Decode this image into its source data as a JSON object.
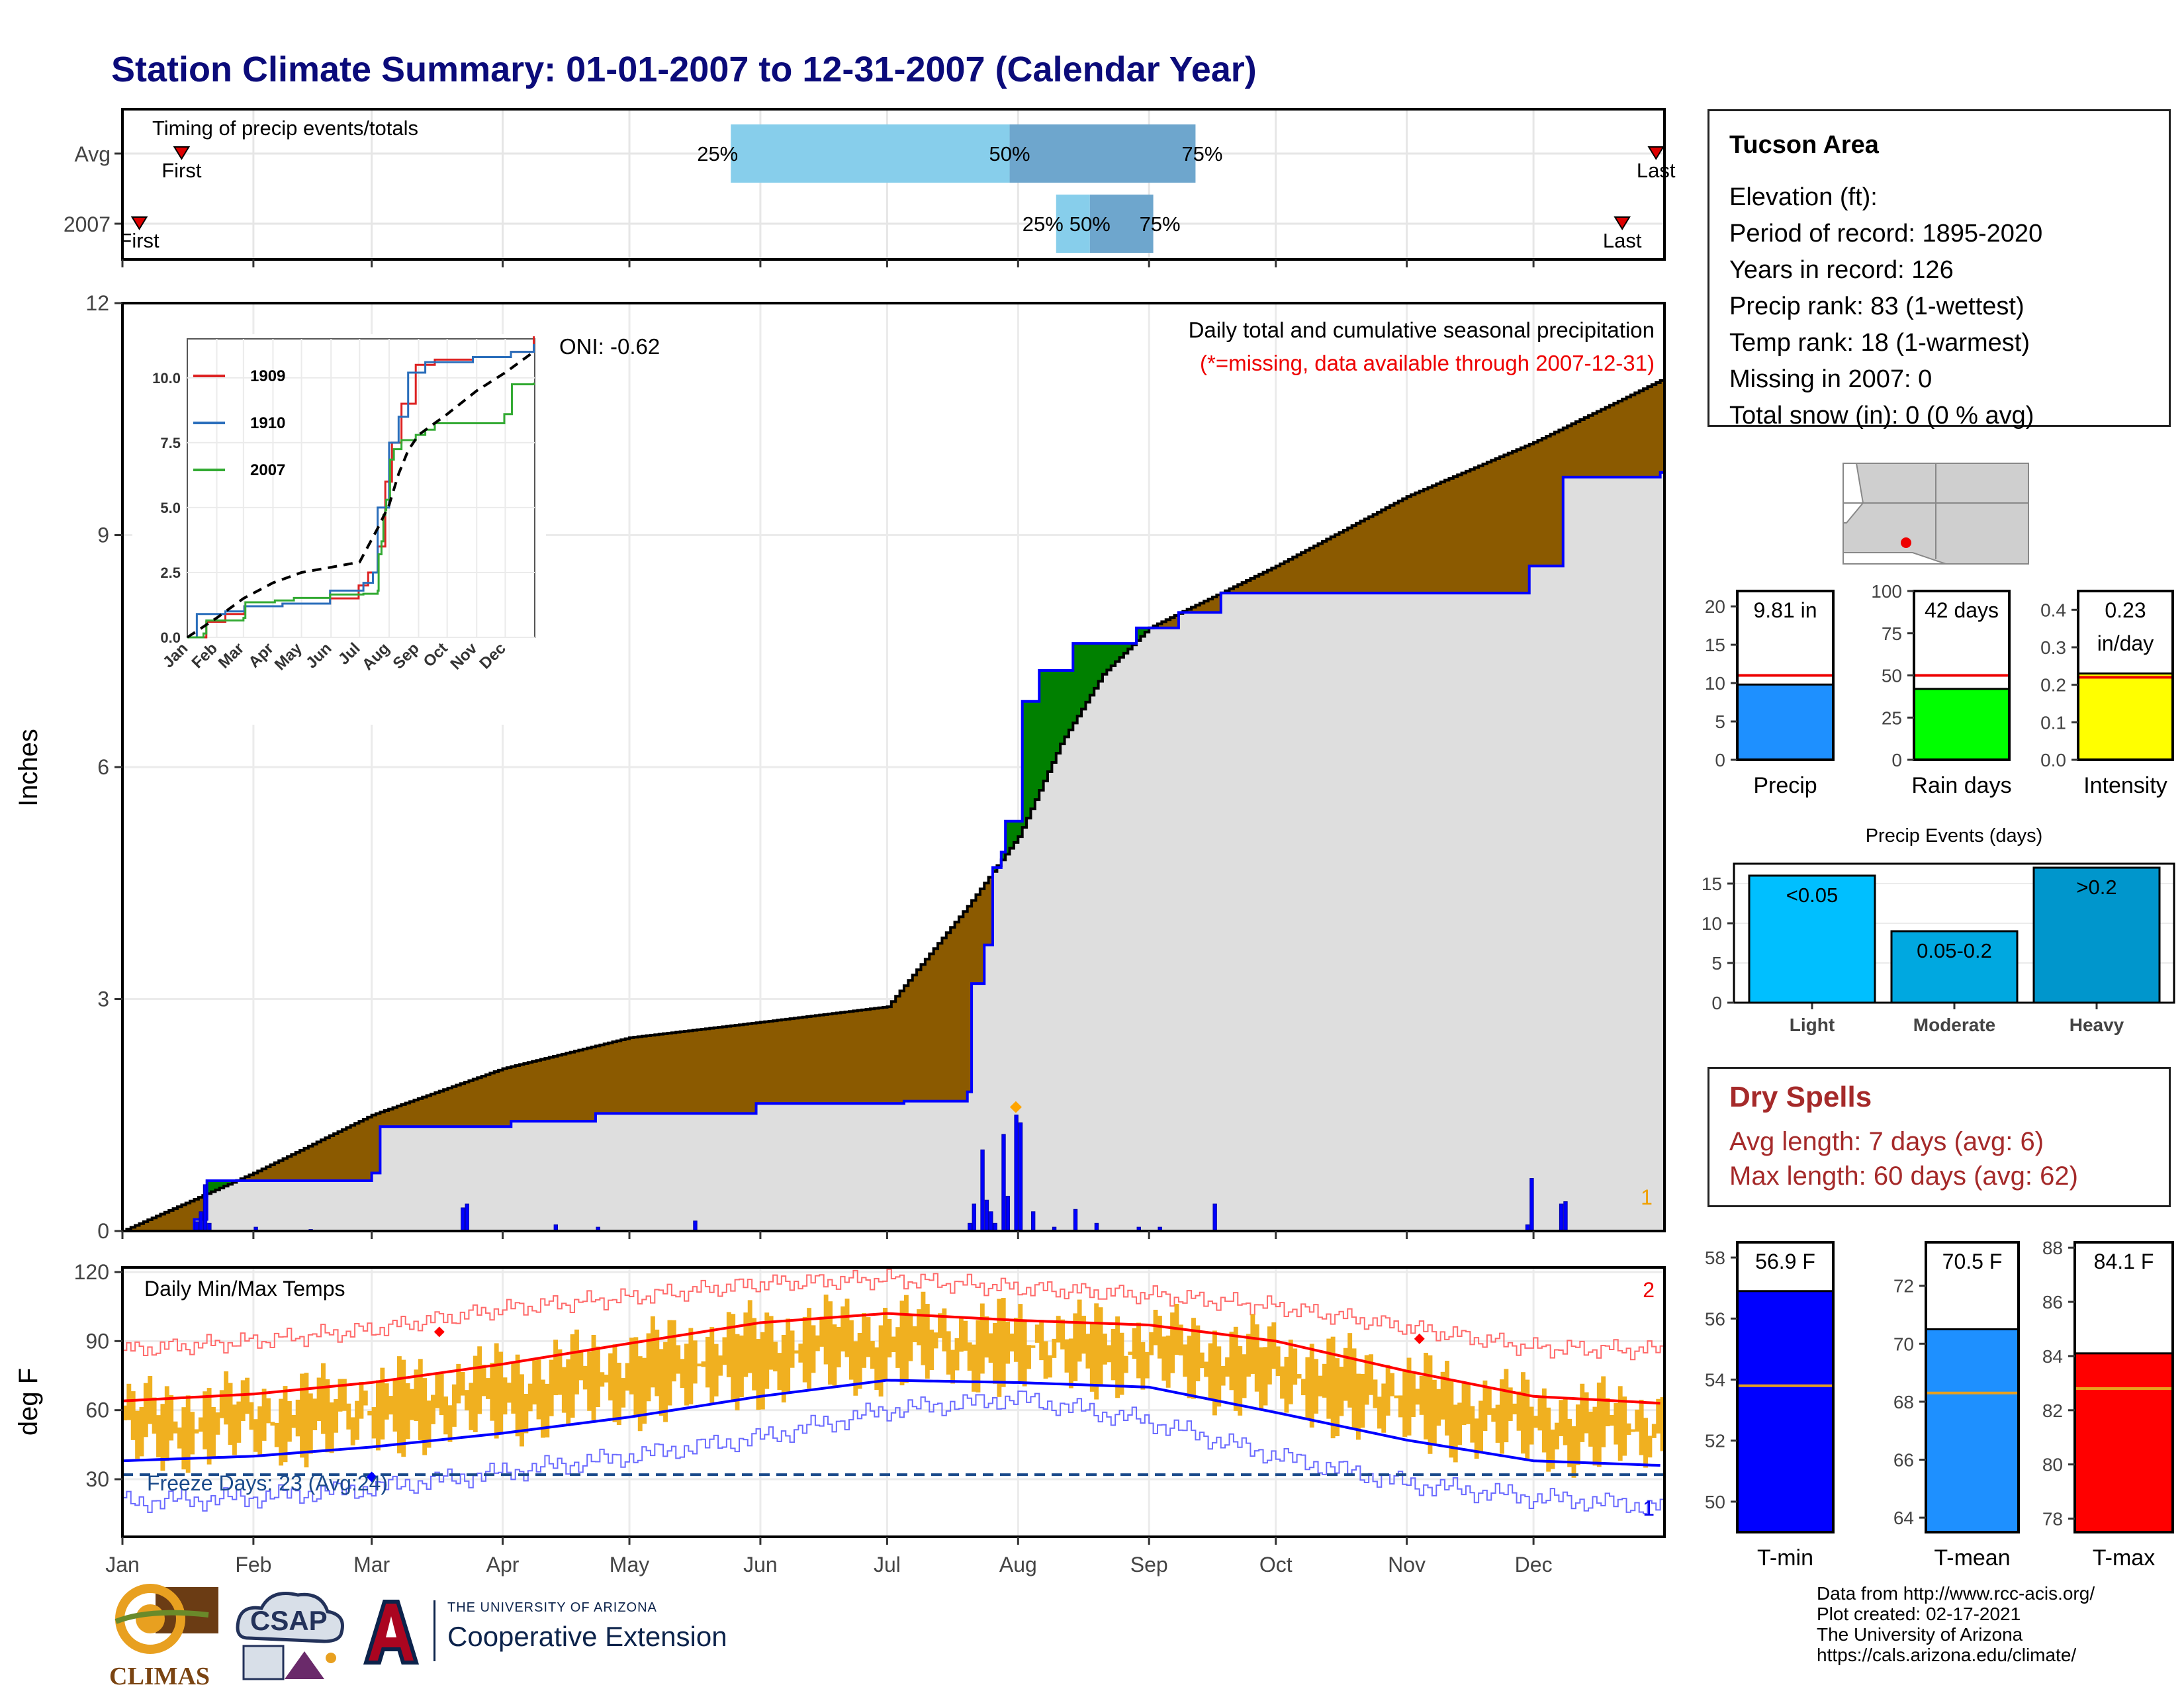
{
  "title": "Station Climate Summary: 01-01-2007 to 12-31-2007 (Calendar Year)",
  "colors": {
    "title": "#0b0b7a",
    "precip_avg_fill": "#8b5a00",
    "precip_surplus_fill": "#008000",
    "precip_line": "#0000ff",
    "temp_bars": "#f0b020",
    "avg_max": "#ff0000",
    "avg_min": "#0000ff"
  },
  "timing_panel": {
    "title": "Timing of precip events/totals",
    "rows": [
      {
        "label": "Avg",
        "first_label": "First",
        "last_label": "Last",
        "q25": "25%",
        "q50": "50%",
        "q75": "75%"
      },
      {
        "label": "2007",
        "first_label": "First",
        "last_label": "Last",
        "q25": "25%",
        "q50": "50%",
        "q75": "75%"
      }
    ]
  },
  "precip_panel": {
    "ylabel": "Inches",
    "title": "Daily total and cumulative seasonal precipitation",
    "subtitle": "(*=missing, data available through 2007-12-31)",
    "oni": "ONI: -0.62",
    "count_label": "1"
  },
  "temp_panel": {
    "ylabel": "deg F",
    "title": "Daily Min/Max Temps",
    "freeze_text": "Freeze Days: 23 (Avg:24)",
    "count_top": "2",
    "count_bottom": "1"
  },
  "station_info": {
    "name": "Tucson Area",
    "lines": [
      "Elevation (ft):",
      "Period of record: 1895-2020",
      "Years in record: 126",
      "Precip rank: 83 (1-wettest)",
      "Temp rank: 18 (1-warmest)",
      "Missing in 2007: 0",
      "Total snow (in): 0 (0 % avg)"
    ]
  },
  "dry_spells": {
    "title": "Dry Spells",
    "avg_line": "Avg length: 7 days (avg: 6)",
    "max_line": "Max length: 60 days (avg: 62)"
  },
  "events_panel": {
    "title": "Precip Events (days)"
  },
  "credits": [
    "Data from http://www.rcc-acis.org/",
    "Plot created: 02-17-2021",
    "The University of Arizona",
    "https://cals.arizona.edu/climate/"
  ],
  "logos": {
    "climas": "CLIMAS",
    "csap": "CSAP",
    "ua_small": "THE UNIVERSITY OF ARIZONA",
    "coop": "Cooperative Extension"
  },
  "chart_data": [
    {
      "type": "bar",
      "name": "timing",
      "categories": [
        "Avg",
        "2007"
      ],
      "x_axis": "day of year",
      "first": [
        14,
        4
      ],
      "q25": [
        144,
        221
      ],
      "q50": [
        210,
        229
      ],
      "q75": [
        254,
        244
      ],
      "last": [
        363,
        355
      ]
    },
    {
      "type": "area",
      "name": "cumulative precipitation",
      "x_labels": [
        "Jan",
        "Feb",
        "Mar",
        "Apr",
        "May",
        "Jun",
        "Jul",
        "Aug",
        "Sep",
        "Oct",
        "Nov",
        "Dec"
      ],
      "ylim": [
        0,
        12
      ],
      "yticks": [
        0,
        3,
        6,
        9,
        12
      ],
      "avg_cumulative": {
        "day": [
          0,
          31,
          59,
          90,
          120,
          151,
          181,
          200,
          212,
          222,
          232,
          243,
          258,
          273,
          304,
          334,
          364
        ],
        "inches": [
          0,
          0.75,
          1.5,
          2.1,
          2.5,
          2.7,
          2.9,
          4.2,
          5.1,
          6.3,
          7.2,
          7.8,
          8.2,
          8.6,
          9.5,
          10.2,
          11.0
        ]
      },
      "cumulative_2007": {
        "day": [
          0,
          17,
          20,
          59,
          61,
          92,
          112,
          150,
          185,
          200,
          201,
          204,
          206,
          208,
          209,
          213,
          217,
          225,
          240,
          250,
          260,
          275,
          294,
          332,
          333,
          340,
          341,
          364
        ],
        "inches": [
          0,
          0.15,
          0.65,
          0.75,
          1.35,
          1.42,
          1.52,
          1.65,
          1.68,
          1.8,
          3.2,
          3.7,
          4.7,
          4.9,
          5.3,
          6.85,
          7.25,
          7.6,
          7.8,
          8.0,
          8.25,
          8.25,
          8.25,
          8.25,
          8.6,
          8.6,
          9.75,
          9.81
        ]
      },
      "daily_2007": {
        "day": [
          17,
          18,
          19,
          20,
          31,
          44,
          80,
          81,
          102,
          112,
          135,
          200,
          201,
          203,
          204,
          205,
          206,
          208,
          209,
          211,
          212,
          215,
          220,
          225,
          230,
          240,
          245,
          258,
          332,
          333,
          340,
          341
        ],
        "inches": [
          0.12,
          0.25,
          0.6,
          0.1,
          0.05,
          0.02,
          0.3,
          0.35,
          0.08,
          0.05,
          0.13,
          0.1,
          0.35,
          1.05,
          0.4,
          0.25,
          0.1,
          1.25,
          0.45,
          1.5,
          1.4,
          0.25,
          0.05,
          0.28,
          0.1,
          0.05,
          0.05,
          0.35,
          0.08,
          0.68,
          0.35,
          0.38
        ]
      },
      "inset": {
        "type": "line",
        "ylim": [
          0,
          11.5
        ],
        "yticks": [
          0.0,
          2.5,
          5.0,
          7.5,
          10.0
        ],
        "x_labels": [
          "Jan",
          "Feb",
          "Mar",
          "Apr",
          "May",
          "Jun",
          "Jul",
          "Aug",
          "Sep",
          "Oct",
          "Nov",
          "Dec"
        ],
        "series": [
          {
            "name": "1909",
            "color": "#dd2222",
            "day": [
              0,
              20,
              40,
              60,
              100,
              150,
              180,
              190,
              200,
              208,
              215,
              225,
              240,
              260,
              300,
              340,
              364
            ],
            "inches": [
              0,
              0.6,
              0.9,
              1.2,
              1.3,
              1.5,
              2.0,
              2.5,
              3.5,
              6.0,
              7.5,
              9.0,
              10.5,
              10.7,
              10.8,
              11.0,
              11.6
            ]
          },
          {
            "name": "1910",
            "color": "#2a6ebb",
            "day": [
              0,
              10,
              40,
              60,
              100,
              150,
              185,
              195,
              200,
              212,
              222,
              232,
              250,
              270,
              300,
              340,
              364
            ],
            "inches": [
              0,
              0.9,
              1.0,
              1.2,
              1.3,
              1.8,
              2.1,
              2.5,
              5.0,
              7.5,
              8.5,
              10.2,
              10.6,
              10.6,
              10.8,
              11.0,
              11.3
            ]
          },
          {
            "name": "2007",
            "color": "#33aa33",
            "day": [
              0,
              17,
              20,
              59,
              61,
              92,
              112,
              150,
              185,
              200,
              201,
              204,
              206,
              208,
              209,
              213,
              217,
              225,
              240,
              250,
              260,
              275,
              294,
              332,
              333,
              340,
              341,
              364
            ],
            "inches": [
              0,
              0.15,
              0.65,
              0.75,
              1.35,
              1.42,
              1.52,
              1.65,
              1.68,
              1.8,
              3.2,
              3.7,
              4.7,
              4.9,
              5.3,
              6.85,
              7.25,
              7.6,
              7.8,
              8.0,
              8.25,
              8.25,
              8.25,
              8.25,
              8.6,
              8.6,
              9.75,
              9.81
            ]
          }
        ],
        "avg": {
          "day": [
            0,
            31,
            59,
            90,
            120,
            151,
            181,
            200,
            212,
            222,
            232,
            243,
            258,
            273,
            304,
            334,
            364
          ],
          "inches": [
            0,
            0.75,
            1.5,
            2.1,
            2.5,
            2.7,
            2.9,
            4.2,
            5.1,
            6.3,
            7.2,
            7.8,
            8.2,
            8.6,
            9.5,
            10.2,
            11.0
          ]
        }
      }
    },
    {
      "type": "bar",
      "name": "daily min/max temps",
      "ylim": [
        5,
        122
      ],
      "yticks": [
        30,
        60,
        90,
        120
      ],
      "x_labels": [
        "Jan",
        "Feb",
        "Mar",
        "Apr",
        "May",
        "Jun",
        "Jul",
        "Aug",
        "Sep",
        "Oct",
        "Nov",
        "Dec"
      ],
      "freeze_line": 32,
      "avg_max": {
        "day": [
          0,
          31,
          59,
          90,
          120,
          151,
          181,
          212,
          243,
          273,
          304,
          334,
          364
        ],
        "degF": [
          64,
          67,
          72,
          80,
          89,
          98,
          102,
          99,
          97,
          90,
          77,
          66,
          63
        ]
      },
      "avg_min": {
        "day": [
          0,
          31,
          59,
          90,
          120,
          151,
          181,
          212,
          243,
          273,
          304,
          334,
          364
        ],
        "degF": [
          38,
          40,
          44,
          50,
          57,
          66,
          73,
          72,
          70,
          59,
          47,
          38,
          36
        ]
      },
      "record_max": {
        "day": [
          0,
          31,
          59,
          90,
          120,
          151,
          181,
          212,
          243,
          273,
          304,
          334,
          364
        ],
        "degF": [
          86,
          90,
          95,
          104,
          109,
          115,
          117,
          113,
          110,
          105,
          96,
          87,
          86
        ]
      },
      "record_min": {
        "day": [
          0,
          31,
          59,
          90,
          120,
          151,
          181,
          212,
          243,
          273,
          304,
          334,
          364
        ],
        "degF": [
          20,
          22,
          26,
          33,
          40,
          48,
          60,
          65,
          55,
          40,
          28,
          22,
          18
        ]
      }
    },
    {
      "type": "bar",
      "name": "season totals",
      "panels": [
        {
          "label": "Precip",
          "value_text": "9.81 in",
          "value": 9.81,
          "avg": 11.0,
          "ylim": [
            0,
            22
          ],
          "yticks": [
            0,
            5,
            10,
            15,
            20
          ],
          "color": "#1e90ff"
        },
        {
          "label": "Rain days",
          "value_text": "42 days",
          "value": 42,
          "avg": 50,
          "ylim": [
            0,
            100
          ],
          "yticks": [
            0,
            25,
            50,
            75,
            100
          ],
          "color": "#00ff00"
        },
        {
          "label": "Intensity",
          "value_text": "0.23 in/day",
          "value": 0.23,
          "avg": 0.22,
          "ylim": [
            0,
            0.45
          ],
          "yticks": [
            0.0,
            0.1,
            0.2,
            0.3,
            0.4
          ],
          "color": "#ffff00"
        }
      ]
    },
    {
      "type": "bar",
      "name": "precip events",
      "categories": [
        "Light",
        "Moderate",
        "Heavy"
      ],
      "bar_labels": [
        "<0.05",
        "0.05-0.2",
        ">0.2"
      ],
      "values": [
        16,
        9,
        17
      ],
      "ylim": [
        0,
        17.5
      ],
      "yticks": [
        0,
        5,
        10,
        15
      ]
    },
    {
      "type": "bar",
      "name": "temperature means",
      "panels": [
        {
          "label": "T-min",
          "value_text": "56.9 F",
          "value": 56.9,
          "avg": 53.8,
          "ylim": [
            49,
            58.5
          ],
          "yticks": [
            50,
            52,
            54,
            56,
            58
          ],
          "color": "#0000ff"
        },
        {
          "label": "T-mean",
          "value_text": "70.5 F",
          "value": 70.5,
          "avg": 68.3,
          "ylim": [
            63.5,
            73.5
          ],
          "yticks": [
            64,
            66,
            68,
            70,
            72
          ],
          "color": "#1e90ff"
        },
        {
          "label": "T-max",
          "value_text": "84.1 F",
          "value": 84.1,
          "avg": 82.8,
          "ylim": [
            77.5,
            88.2
          ],
          "yticks": [
            78,
            80,
            82,
            84,
            86,
            88
          ],
          "color": "#ff0000"
        }
      ]
    }
  ]
}
